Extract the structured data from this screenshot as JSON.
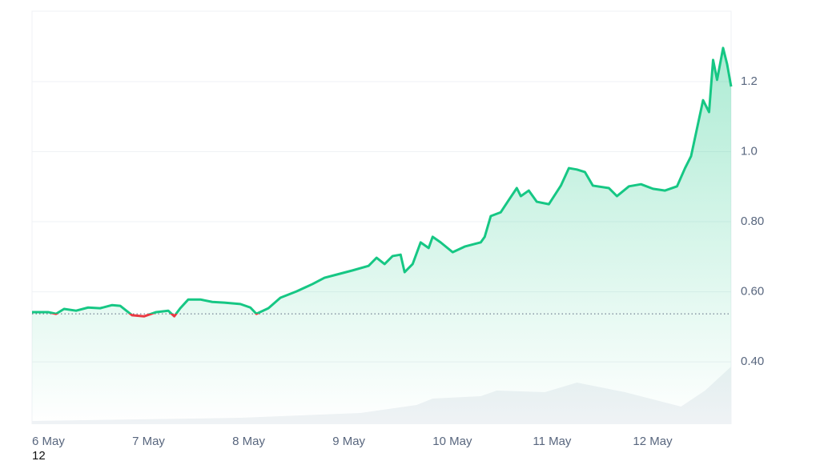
{
  "chart_data": {
    "type": "line",
    "x": [
      0,
      0.16,
      0.24,
      0.32,
      0.44,
      0.56,
      0.68,
      0.8,
      0.88,
      1.0,
      1.12,
      1.24,
      1.36,
      1.42,
      1.48,
      1.56,
      1.68,
      1.8,
      1.92,
      2.08,
      2.18,
      2.24,
      2.36,
      2.48,
      2.64,
      2.8,
      2.92,
      3.04,
      3.2,
      3.36,
      3.44,
      3.52,
      3.6,
      3.68,
      3.72,
      3.8,
      3.88,
      3.96,
      4.0,
      4.08,
      4.2,
      4.32,
      4.48,
      4.52,
      4.58,
      4.68,
      4.76,
      4.84,
      4.88,
      4.96,
      5.04,
      5.16,
      5.28,
      5.36,
      5.44,
      5.52,
      5.6,
      5.76,
      5.84,
      5.96,
      6.08,
      6.2,
      6.32,
      6.44,
      6.52,
      6.58,
      6.64,
      6.7,
      6.76,
      6.8,
      6.84,
      6.9,
      6.94,
      6.98
    ],
    "series": [
      {
        "color": "#16c784",
        "below_color": "#ea3943",
        "values": [
          0.542,
          0.542,
          0.537,
          0.551,
          0.546,
          0.555,
          0.553,
          0.562,
          0.56,
          0.533,
          0.53,
          0.542,
          0.546,
          0.53,
          0.553,
          0.578,
          0.578,
          0.571,
          0.569,
          0.565,
          0.555,
          0.537,
          0.553,
          0.583,
          0.601,
          0.622,
          0.64,
          0.649,
          0.661,
          0.674,
          0.697,
          0.679,
          0.702,
          0.706,
          0.656,
          0.679,
          0.741,
          0.725,
          0.757,
          0.741,
          0.713,
          0.729,
          0.741,
          0.757,
          0.816,
          0.827,
          0.862,
          0.896,
          0.873,
          0.889,
          0.857,
          0.85,
          0.903,
          0.953,
          0.949,
          0.942,
          0.903,
          0.896,
          0.873,
          0.901,
          0.907,
          0.894,
          0.889,
          0.901,
          0.953,
          0.987,
          1.067,
          1.147,
          1.113,
          1.262,
          1.205,
          1.296,
          1.25,
          1.186
        ]
      }
    ],
    "baseline": 0.537,
    "volume": {
      "color": "#eff2f5",
      "vlim": [
        0,
        100
      ],
      "x": [
        0,
        2.08,
        3.28,
        3.84,
        4.0,
        4.48,
        4.64,
        5.12,
        5.44,
        5.92,
        6.48,
        6.72,
        6.98
      ],
      "values": [
        4,
        8,
        14,
        24,
        32,
        35,
        42,
        40,
        52,
        40,
        22,
        42,
        72
      ]
    },
    "xlim": [
      0,
      6.98
    ],
    "xticks": [
      {
        "value": 0,
        "label": "6 May"
      },
      {
        "value": 1,
        "label": "7 May"
      },
      {
        "value": 2,
        "label": "8 May"
      },
      {
        "value": 3,
        "label": "9 May"
      },
      {
        "value": 4,
        "label": "10 May"
      },
      {
        "value": 5,
        "label": "11 May"
      },
      {
        "value": 6,
        "label": "12 May"
      }
    ],
    "ylim": [
      0.222,
      1.401
    ],
    "yticks": [
      {
        "value": 0.4,
        "label": "0.40"
      },
      {
        "value": 0.6,
        "label": "0.60"
      },
      {
        "value": 0.8,
        "label": "0.80"
      },
      {
        "value": 1.0,
        "label": "1.0"
      },
      1.2
    ],
    "grid": true,
    "footnote": "12"
  }
}
